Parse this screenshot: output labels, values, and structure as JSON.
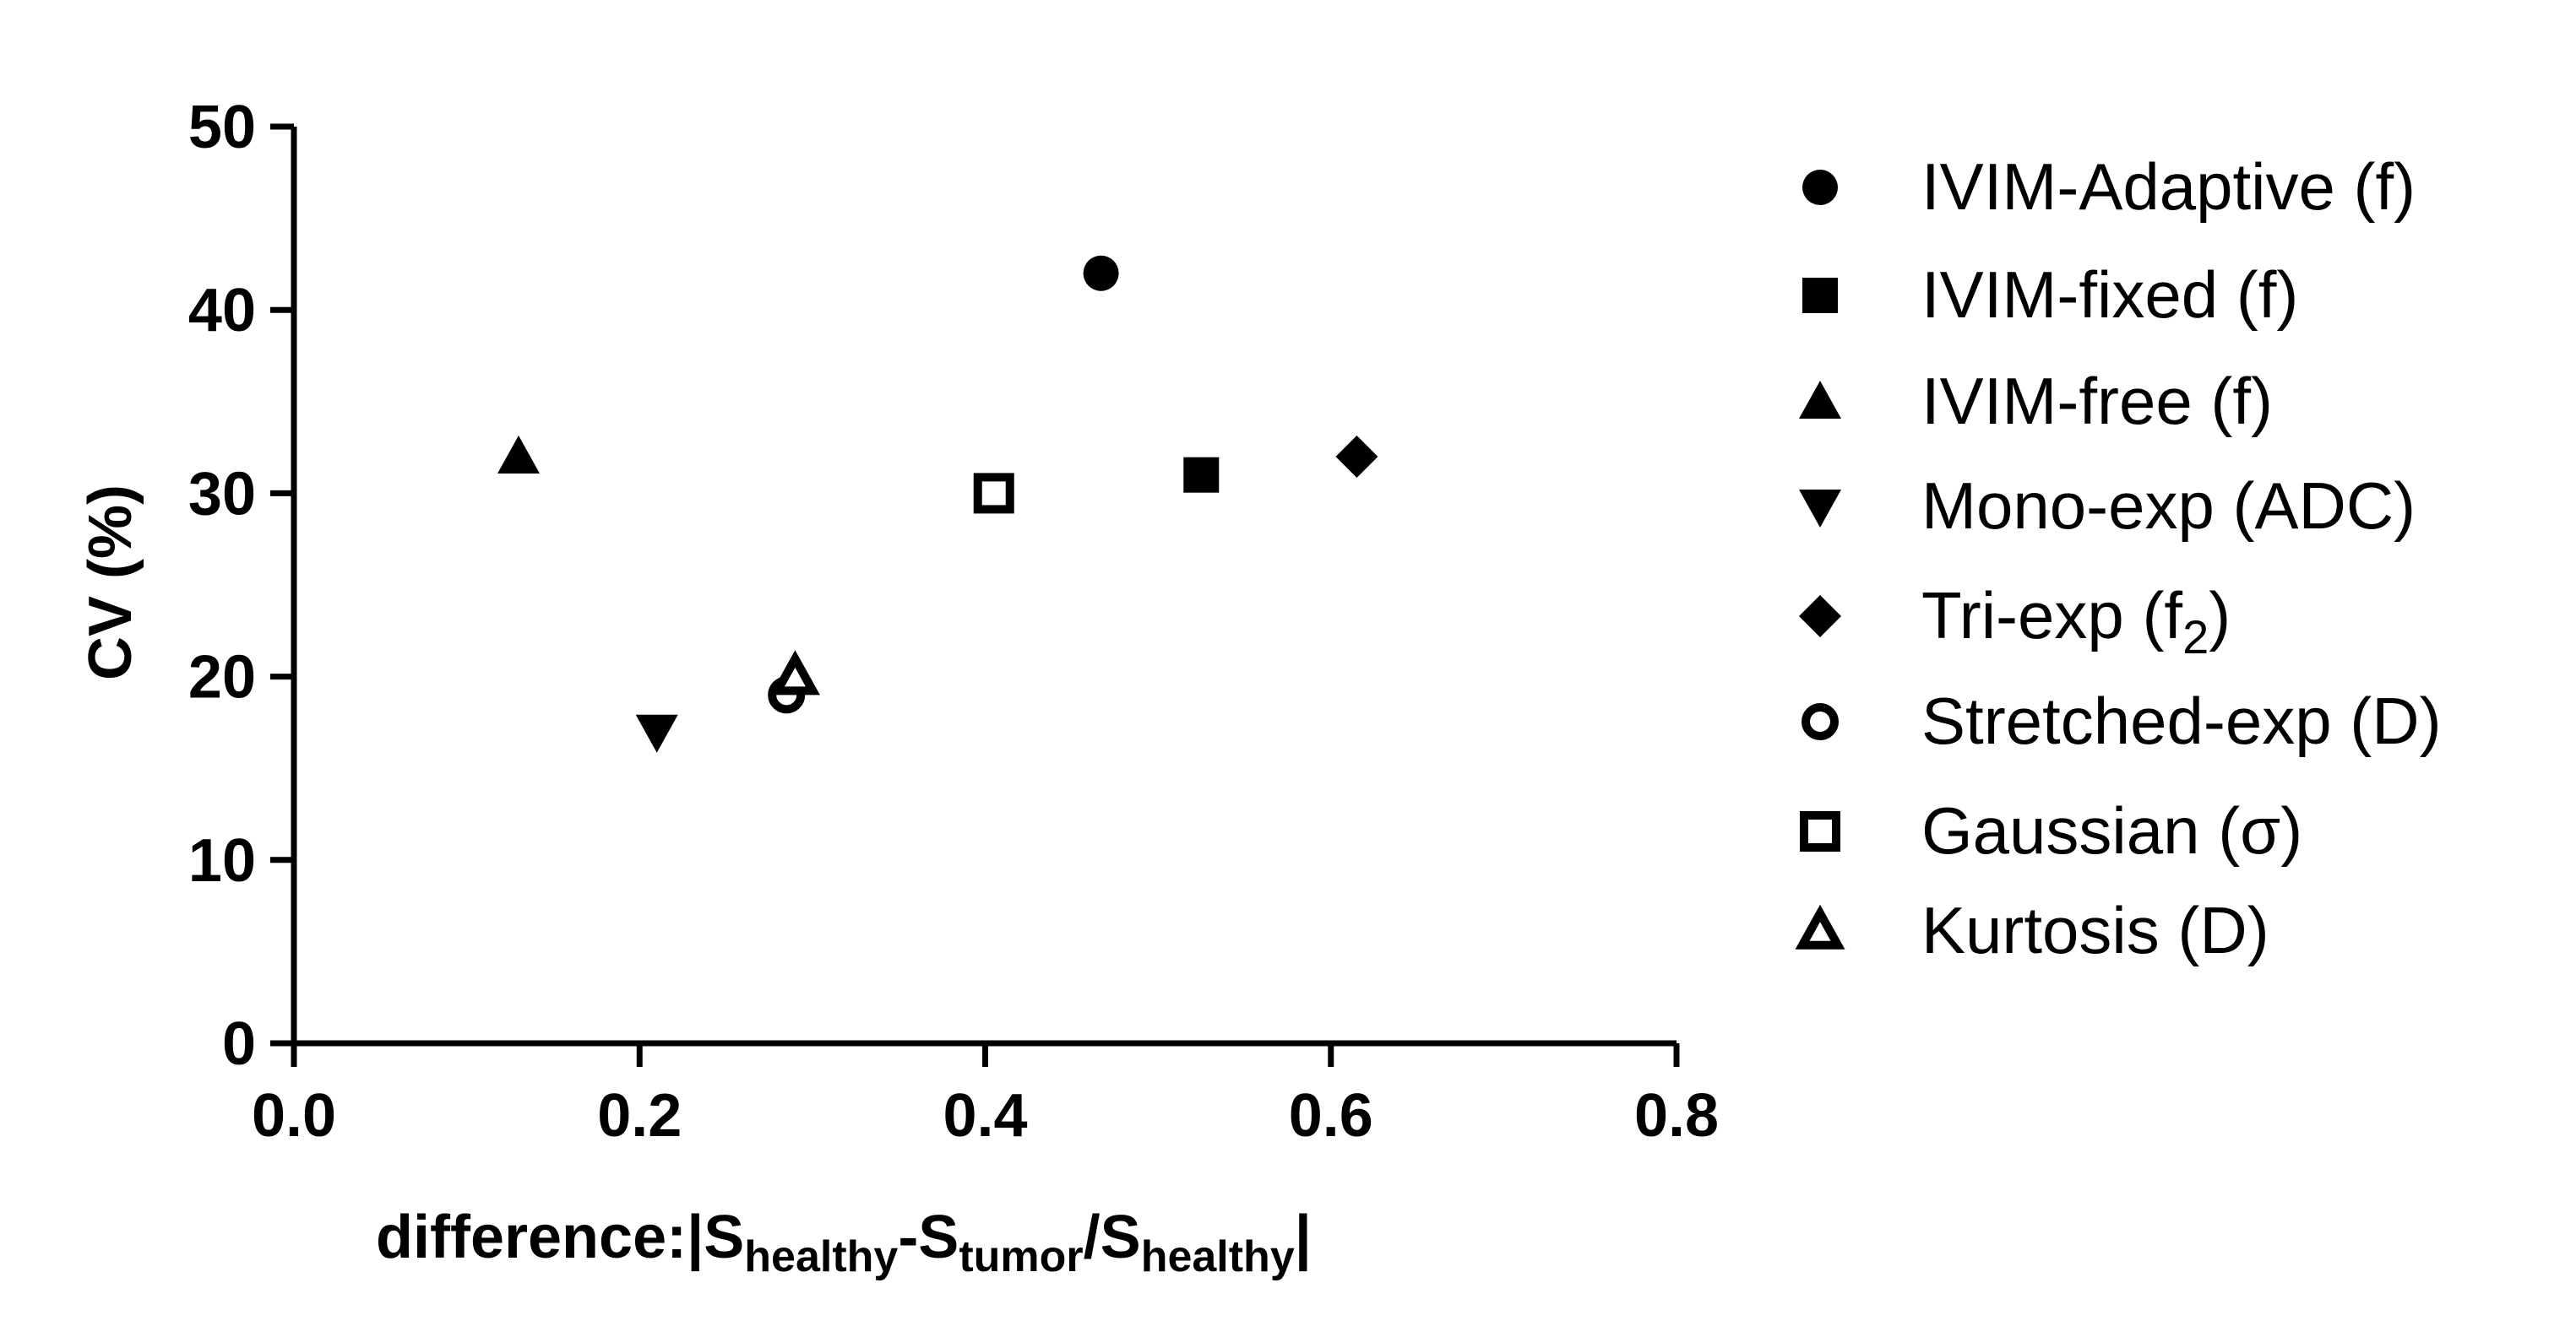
{
  "chart_data": {
    "type": "scatter",
    "title": "",
    "ylabel": "CV (%)",
    "xlabel": {
      "prefix": "difference:|S",
      "sub1": "healthy",
      "mid1": "-S",
      "sub2": "tumor",
      "mid2": "/S",
      "sub3": "healthy",
      "suffix": "|"
    },
    "xlim": [
      0.0,
      0.8
    ],
    "ylim": [
      0,
      50
    ],
    "xticks": [
      0.0,
      0.2,
      0.4,
      0.6,
      0.8
    ],
    "xtick_labels": [
      "0.0",
      "0.2",
      "0.4",
      "0.6",
      "0.8"
    ],
    "yticks": [
      0,
      10,
      20,
      30,
      40,
      50
    ],
    "ytick_labels": [
      "0",
      "10",
      "20",
      "30",
      "40",
      "50"
    ],
    "grid": false,
    "legend_position": "right",
    "series": [
      {
        "name": "IVIM-Adaptive (f)",
        "label": "IVIM-Adaptive (f)",
        "marker": "circle-filled",
        "x": 0.467,
        "y": 42
      },
      {
        "name": "IVIM-fixed (f)",
        "label": "IVIM-fixed (f)",
        "marker": "square-filled",
        "x": 0.525,
        "y": 31
      },
      {
        "name": "IVIM-free (f)",
        "label": "IVIM-free (f)",
        "marker": "triangle-up-filled",
        "x": 0.13,
        "y": 32
      },
      {
        "name": "Mono-exp (ADC)",
        "label": "Mono-exp (ADC)",
        "marker": "triangle-down-filled",
        "x": 0.21,
        "y": 17
      },
      {
        "name": "Tri-exp (f2)",
        "label": "Tri-exp (f",
        "label_sub": "2",
        "label_end": ")",
        "marker": "diamond-filled",
        "x": 0.615,
        "y": 32
      },
      {
        "name": "Stretched-exp (D)",
        "label": "Stretched-exp (D)",
        "marker": "circle-open",
        "x": 0.285,
        "y": 19
      },
      {
        "name": "Gaussian (σ)",
        "label": "Gaussian (σ)",
        "marker": "square-open",
        "x": 0.405,
        "y": 30
      },
      {
        "name": "Kurtosis (D)",
        "label": "Kurtosis (D)",
        "marker": "triangle-up-open",
        "x": 0.29,
        "y": 20
      }
    ],
    "colors": {
      "marker": "#000000",
      "axis": "#000000",
      "background": "#ffffff"
    }
  }
}
